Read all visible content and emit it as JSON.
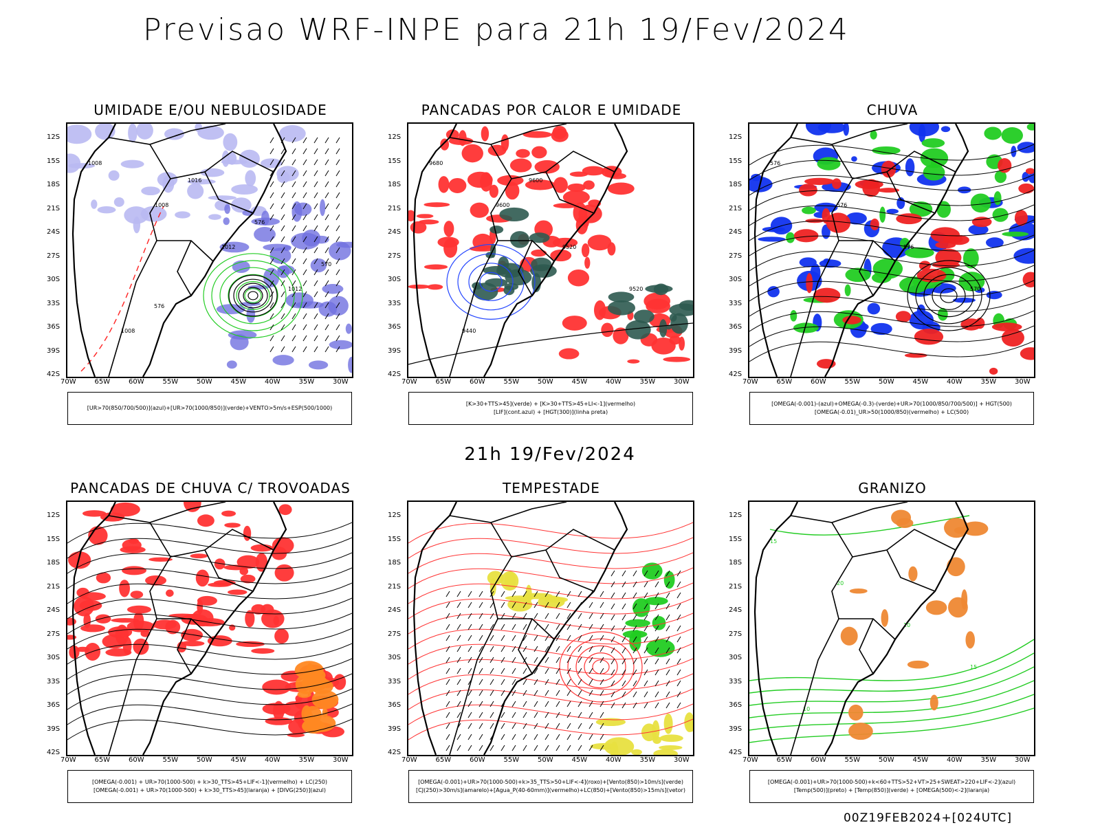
{
  "main_title": "Previsao WRF-INPE  para 21h 19/Fev/2024",
  "sub_title": "21h 19/Fev/2024",
  "footer": "00Z19FEB2024+[024UTC]",
  "lat_ticks": [
    "12S",
    "15S",
    "18S",
    "21S",
    "24S",
    "27S",
    "30S",
    "33S",
    "36S",
    "39S",
    "42S"
  ],
  "lon_ticks": [
    "70W",
    "65W",
    "60W",
    "55W",
    "50W",
    "45W",
    "40W",
    "35W",
    "30W"
  ],
  "panels": [
    {
      "id": "umidade",
      "title": "UMIDADE E/OU NEBULOSIDADE",
      "legend": [
        "[UR>70(850/700/500)](azul)+[UR>70(1000/850)](verde)+VENTO>5m/s+ESP(500/1000)"
      ],
      "contour_labels": [
        "1008",
        "1008",
        "1012",
        "1012",
        "1008",
        "1016",
        "576",
        "570",
        "576"
      ],
      "colors": {
        "fill": "#b9b9f2",
        "fill2": "#7070e0",
        "lines": "#22cc22",
        "dash": "#ff2222"
      }
    },
    {
      "id": "pancadas-calor",
      "title": "PANCADAS POR CALOR E UMIDADE",
      "legend": [
        "[K>30+TTS>45](verde) + [K>30+TTS>45+LI<-1](vermelho)",
        "[LIF](cont.azul) + [HGT(300)](linha preta)"
      ],
      "contour_labels": [
        "9680",
        "9600",
        "9520",
        "9520",
        "9440",
        "9600"
      ],
      "colors": {
        "fill": "#ff3333",
        "fill2": "#2e5a50",
        "lines": "#2244ff"
      }
    },
    {
      "id": "chuva",
      "title": "CHUVA",
      "legend": [
        "[OMEGA(-0.001)-(azul)+OMEGA(-0.3)-(verde)+UR>70(1000/850/700/500)] + HGT(500)",
        "[OMEGA(-0.01)_UR>50(1000/850)(vermelho) + LC(500)"
      ],
      "contour_labels": [
        "576",
        "576",
        "576",
        "570"
      ],
      "colors": {
        "fill": "#1133ee",
        "fill2": "#22cc22",
        "fill3": "#ee2222"
      }
    },
    {
      "id": "trovoadas",
      "title": "PANCADAS DE CHUVA C/ TROVOADAS",
      "legend": [
        "[OMEGA(-0.001) + UR>70(1000-500) + k>30_TTS>45+LIF<-1](vermelho) + LC(250)",
        "[OMEGA(-0.001) + UR>70(1000-500) + k>30_TTS>45](laranja) + [DIVG(250)](azul)"
      ],
      "contour_labels": [],
      "colors": {
        "fill": "#ff3333",
        "fill2": "#ff8822"
      }
    },
    {
      "id": "tempestade",
      "title": "TEMPESTADE",
      "legend": [
        "[OMEGA(-0.001)+UR>70(1000-500)+k>35_TTS>50+LIF<-4](roxo)+[Vento(850)>10m/s](verde)",
        "[CJ(250)>30m/s](amarelo)+[Agua_P(40-60mm)](vermelho)+LC(850)+[Vento(850)>15m/s](vetor)"
      ],
      "contour_labels": [],
      "colors": {
        "fill": "#e8e040",
        "fill2": "#22cc22",
        "lines": "#ff3333"
      }
    },
    {
      "id": "granizo",
      "title": "GRANIZO",
      "legend": [
        "[OMEGA(-0.001)+UR>70(1000-500)+k<60+TTS>52+VT>25+SWEAT>220+LIF<-2](azul)",
        "[Temp(500)](preto) + [Temp(850)](verde) + [OMEGA(500)<-2](laranja)"
      ],
      "contour_labels": [
        "15",
        "20",
        "10",
        "15",
        "10"
      ],
      "colors": {
        "lines": "#22cc22",
        "dots": "#ee8833"
      }
    }
  ]
}
